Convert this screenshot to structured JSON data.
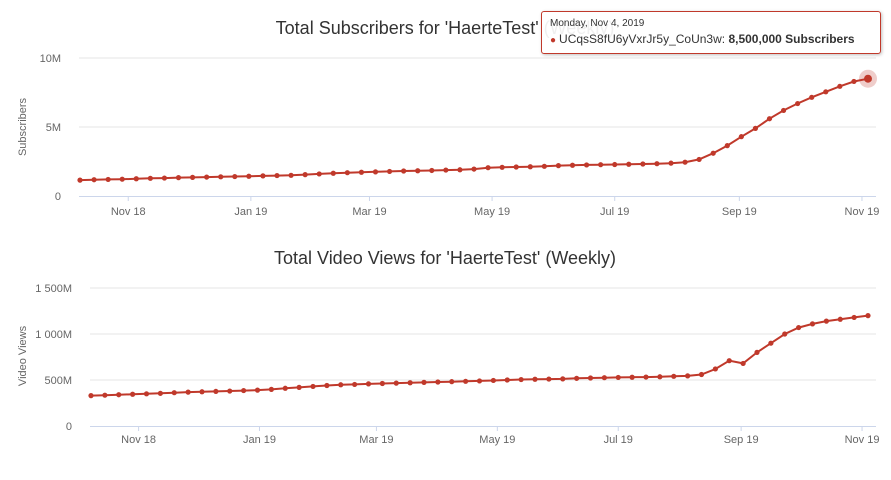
{
  "chart_data": [
    {
      "type": "line",
      "title": "Total Subscribers for 'HaerteTest' (Weekly)",
      "ylabel": "Subscribers",
      "xlabel": "",
      "ylim": [
        0,
        10000000
      ],
      "y_ticks": [
        {
          "value": 0,
          "label": "0"
        },
        {
          "value": 5000000,
          "label": "5M"
        },
        {
          "value": 10000000,
          "label": "10M"
        }
      ],
      "x_ticks": [
        "Nov 18",
        "Jan 19",
        "Mar 19",
        "May 19",
        "Jul 19",
        "Sep 19",
        "Nov 19"
      ],
      "x": [
        "2018-10-08",
        "2018-10-15",
        "2018-10-22",
        "2018-10-29",
        "2018-11-05",
        "2018-11-12",
        "2018-11-19",
        "2018-11-26",
        "2018-12-03",
        "2018-12-10",
        "2018-12-17",
        "2018-12-24",
        "2018-12-31",
        "2019-01-07",
        "2019-01-14",
        "2019-01-21",
        "2019-01-28",
        "2019-02-04",
        "2019-02-11",
        "2019-02-18",
        "2019-02-25",
        "2019-03-04",
        "2019-03-11",
        "2019-03-18",
        "2019-03-25",
        "2019-04-01",
        "2019-04-08",
        "2019-04-15",
        "2019-04-22",
        "2019-04-29",
        "2019-05-06",
        "2019-05-13",
        "2019-05-20",
        "2019-05-27",
        "2019-06-03",
        "2019-06-10",
        "2019-06-17",
        "2019-06-24",
        "2019-07-01",
        "2019-07-08",
        "2019-07-15",
        "2019-07-22",
        "2019-07-29",
        "2019-08-05",
        "2019-08-12",
        "2019-08-19",
        "2019-08-26",
        "2019-09-02",
        "2019-09-09",
        "2019-09-16",
        "2019-09-23",
        "2019-09-30",
        "2019-10-07",
        "2019-10-14",
        "2019-10-21",
        "2019-10-28",
        "2019-11-04"
      ],
      "series": [
        {
          "name": "UCqsS8fU6yVxrJr5y_CoUn3w",
          "values": [
            1150000,
            1180000,
            1200000,
            1220000,
            1250000,
            1280000,
            1300000,
            1330000,
            1350000,
            1370000,
            1390000,
            1410000,
            1430000,
            1460000,
            1480000,
            1500000,
            1550000,
            1600000,
            1650000,
            1690000,
            1720000,
            1750000,
            1780000,
            1810000,
            1830000,
            1850000,
            1880000,
            1900000,
            1950000,
            2050000,
            2080000,
            2100000,
            2120000,
            2150000,
            2200000,
            2230000,
            2250000,
            2270000,
            2280000,
            2300000,
            2320000,
            2340000,
            2380000,
            2450000,
            2650000,
            3100000,
            3650000,
            4300000,
            4900000,
            5600000,
            6200000,
            6700000,
            7150000,
            7550000,
            7950000,
            8300000,
            8500000
          ]
        }
      ],
      "highlight_index": 56
    },
    {
      "type": "line",
      "title": "Total Video Views for 'HaerteTest' (Weekly)",
      "ylabel": "Video Views",
      "xlabel": "",
      "ylim": [
        0,
        1500000000
      ],
      "y_ticks": [
        {
          "value": 0,
          "label": "0"
        },
        {
          "value": 500000000,
          "label": "500M"
        },
        {
          "value": 1000000000,
          "label": "1 000M"
        },
        {
          "value": 1500000000,
          "label": "1 500M"
        }
      ],
      "x_ticks": [
        "Nov 18",
        "Jan 19",
        "Mar 19",
        "May 19",
        "Jul 19",
        "Sep 19",
        "Nov 19"
      ],
      "x": [
        "2018-10-08",
        "2018-10-15",
        "2018-10-22",
        "2018-10-29",
        "2018-11-05",
        "2018-11-12",
        "2018-11-19",
        "2018-11-26",
        "2018-12-03",
        "2018-12-10",
        "2018-12-17",
        "2018-12-24",
        "2018-12-31",
        "2019-01-07",
        "2019-01-14",
        "2019-01-21",
        "2019-01-28",
        "2019-02-04",
        "2019-02-11",
        "2019-02-18",
        "2019-02-25",
        "2019-03-04",
        "2019-03-11",
        "2019-03-18",
        "2019-03-25",
        "2019-04-01",
        "2019-04-08",
        "2019-04-15",
        "2019-04-22",
        "2019-04-29",
        "2019-05-06",
        "2019-05-13",
        "2019-05-20",
        "2019-05-27",
        "2019-06-03",
        "2019-06-10",
        "2019-06-17",
        "2019-06-24",
        "2019-07-01",
        "2019-07-08",
        "2019-07-15",
        "2019-07-22",
        "2019-07-29",
        "2019-08-05",
        "2019-08-12",
        "2019-08-19",
        "2019-08-26",
        "2019-09-02",
        "2019-09-09",
        "2019-09-16",
        "2019-09-23",
        "2019-09-30",
        "2019-10-07",
        "2019-10-14",
        "2019-10-21",
        "2019-10-28",
        "2019-11-04"
      ],
      "series": [
        {
          "name": "",
          "values": [
            330000000,
            335000000,
            340000000,
            345000000,
            350000000,
            355000000,
            362000000,
            368000000,
            372000000,
            376000000,
            380000000,
            385000000,
            390000000,
            398000000,
            410000000,
            420000000,
            430000000,
            440000000,
            448000000,
            452000000,
            458000000,
            462000000,
            466000000,
            470000000,
            474000000,
            478000000,
            482000000,
            486000000,
            490000000,
            495000000,
            500000000,
            505000000,
            508000000,
            510000000,
            512000000,
            518000000,
            522000000,
            525000000,
            528000000,
            530000000,
            532000000,
            535000000,
            540000000,
            545000000,
            560000000,
            620000000,
            710000000,
            680000000,
            800000000,
            900000000,
            1000000000,
            1070000000,
            1110000000,
            1140000000,
            1160000000,
            1180000000,
            1200000000
          ]
        }
      ]
    }
  ],
  "tooltip": {
    "date": "Monday, Nov 4, 2019",
    "series_name": "UCqsS8fU6yVxrJr5y_CoUn3w:",
    "value_text": "8,500,000 Subscribers",
    "color": "#c0392b"
  }
}
